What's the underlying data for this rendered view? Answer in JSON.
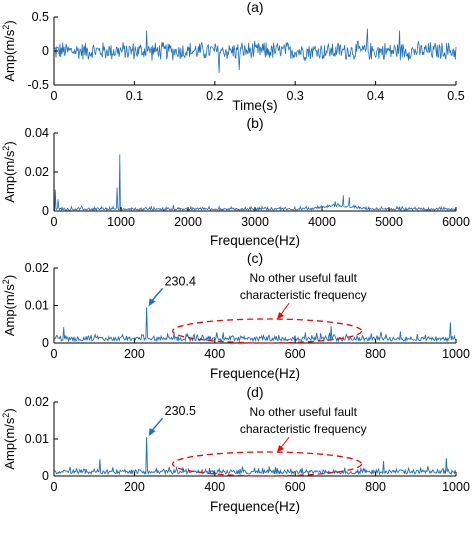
{
  "colors": {
    "signal": "#1f6fbd",
    "annotation": "#ff0000",
    "axis": "#000000"
  },
  "chart_data": [
    {
      "type": "line",
      "panel_label": "(a)",
      "xlabel": "Time(s)",
      "ylabel": "Amp(m/s",
      "ylabel_sup": "2",
      "ylabel_end": ")",
      "xlim": [
        0,
        0.5
      ],
      "ylim": [
        -0.5,
        0.5
      ],
      "xticks": [
        "0",
        "0.1",
        "0.2",
        "0.3",
        "0.4",
        "0.5"
      ],
      "yticks": [
        "-0.5",
        "0",
        "0.5"
      ],
      "grid": false,
      "series": [
        {
          "x_start": 0,
          "x_end": 0.5,
          "n_points": 600,
          "baseline": 0,
          "amplitude": 0.13,
          "spikes": [
            {
              "x": 0.205,
              "y": -0.32
            },
            {
              "x": 0.23,
              "y": -0.28
            },
            {
              "x": 0.115,
              "y": 0.3
            },
            {
              "x": 0.39,
              "y": 0.33
            },
            {
              "x": 0.43,
              "y": 0.3
            }
          ]
        }
      ]
    },
    {
      "type": "line",
      "panel_label": "(b)",
      "xlabel": "Frequence(Hz)",
      "ylabel": "Amp(m/s",
      "ylabel_sup": "2",
      "ylabel_end": ")",
      "xlim": [
        0,
        6000
      ],
      "ylim": [
        0,
        0.04
      ],
      "xticks": [
        "0",
        "1000",
        "2000",
        "3000",
        "4000",
        "5000",
        "6000"
      ],
      "yticks": [
        "0",
        "0.02",
        "0.04"
      ],
      "grid": false,
      "series": [
        {
          "x_start": 0,
          "x_end": 6000,
          "n_points": 600,
          "baseline": 0.0015,
          "amplitude": 0.002,
          "spikes": [
            {
              "x": 20,
              "y": 0.011
            },
            {
              "x": 60,
              "y": 0.006
            },
            {
              "x": 980,
              "y": 0.029
            },
            {
              "x": 940,
              "y": 0.012
            },
            {
              "x": 1780,
              "y": 0.003
            },
            {
              "x": 4320,
              "y": 0.008
            },
            {
              "x": 4410,
              "y": 0.007
            },
            {
              "x": 4200,
              "y": 0.005
            }
          ]
        }
      ]
    },
    {
      "type": "line",
      "panel_label": "(c)",
      "xlabel": "Frequence(Hz)",
      "ylabel": "Amp(m/s",
      "ylabel_sup": "2",
      "ylabel_end": ")",
      "xlim": [
        0,
        1000
      ],
      "ylim": [
        0,
        0.02
      ],
      "xticks": [
        "0",
        "200",
        "400",
        "600",
        "800",
        "1000"
      ],
      "yticks": [
        "0",
        "0.01",
        "0.02"
      ],
      "grid": false,
      "peak": {
        "x": 230.4,
        "y": 0.0095,
        "label": "230.4"
      },
      "annotation_lines": [
        "No other useful fault",
        "characteristic frequency"
      ],
      "series": [
        {
          "x_start": 0,
          "x_end": 1000,
          "n_points": 500,
          "baseline": 0.0018,
          "amplitude": 0.0022,
          "spikes": [
            {
              "x": 230.4,
              "y": 0.0095
            },
            {
              "x": 985,
              "y": 0.0055
            },
            {
              "x": 690,
              "y": 0.0045
            },
            {
              "x": 25,
              "y": 0.0042
            }
          ]
        }
      ]
    },
    {
      "type": "line",
      "panel_label": "(d)",
      "xlabel": "Frequence(Hz)",
      "ylabel": "Amp(m/s",
      "ylabel_sup": "2",
      "ylabel_end": ")",
      "xlim": [
        0,
        1000
      ],
      "ylim": [
        0,
        0.02
      ],
      "xticks": [
        "0",
        "200",
        "400",
        "600",
        "800",
        "1000"
      ],
      "yticks": [
        "0",
        "0.01",
        "0.02"
      ],
      "grid": false,
      "peak": {
        "x": 230.5,
        "y": 0.0105,
        "label": "230.5"
      },
      "annotation_lines": [
        "No other useful fault",
        "characteristic frequency"
      ],
      "series": [
        {
          "x_start": 0,
          "x_end": 1000,
          "n_points": 500,
          "baseline": 0.0018,
          "amplitude": 0.002,
          "spikes": [
            {
              "x": 230.5,
              "y": 0.0105
            },
            {
              "x": 975,
              "y": 0.0048
            },
            {
              "x": 115,
              "y": 0.0045
            },
            {
              "x": 820,
              "y": 0.004
            }
          ]
        }
      ]
    }
  ]
}
